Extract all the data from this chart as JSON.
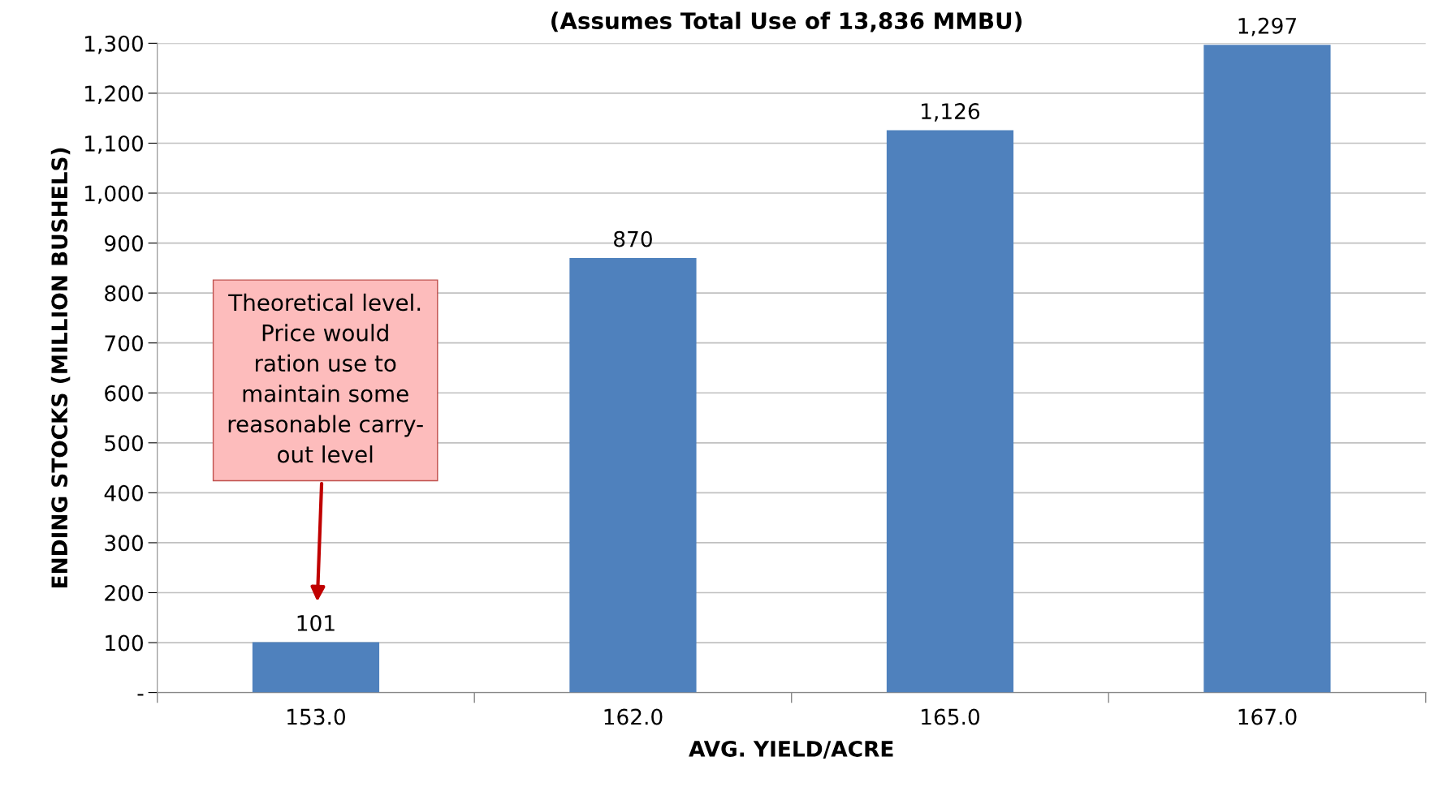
{
  "chart_data": {
    "type": "bar",
    "title": "(Assumes Total Use of 13,836 MMBU)",
    "xlabel": "AVG. YIELD/ACRE",
    "ylabel": "ENDING STOCKS (MILLION BUSHELS)",
    "categories": [
      "153.0",
      "162.0",
      "165.0",
      "167.0"
    ],
    "values": [
      101,
      870,
      1126,
      1297
    ],
    "value_labels": [
      "101",
      "870",
      "1,126",
      "1,297"
    ],
    "color": "#4f81bd",
    "ylim": [
      0,
      1300
    ],
    "yticks": [
      {
        "value": 0,
        "label": "-"
      },
      100,
      200,
      300,
      400,
      500,
      600,
      700,
      800,
      900,
      {
        "value": 1000,
        "label": "1,000"
      },
      {
        "value": 1100,
        "label": "1,100"
      },
      {
        "value": 1200,
        "label": "1,200"
      },
      {
        "value": 1300,
        "label": "1,300"
      }
    ],
    "grid": "y",
    "annotations": [
      "Theoretical level.\nPrice would\nration use to\nmaintain some\nreasonable carry-\nout level"
    ]
  }
}
